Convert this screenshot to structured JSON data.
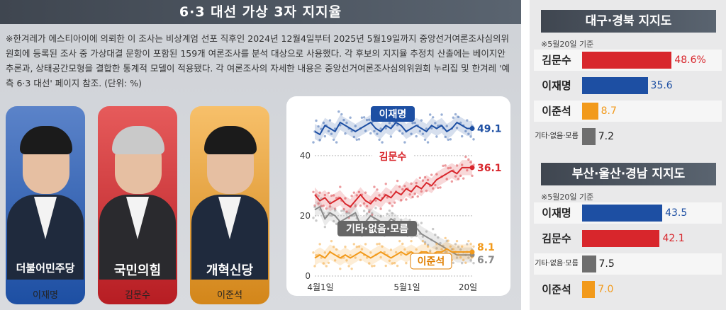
{
  "title": "6·3 대선 가상 3자 지지율",
  "note": "※한겨레가 에스티아이에 의뢰한 이 조사는 비상계엄 선포 직후인 2024년 12월4일부터 2025년 5월19일까지 중앙선거여론조사심의위원회에 등록된 조사 중 가상대결 문항이 포함된 159개 여론조사를 분석 대상으로 사용했다. 각 후보의 지지율 추정치 산출에는 베이지안 추론과, 상태공간모형을 결합한 통계적 모델이 적용됐다. 각 여론조사의 자세한 내용은 중앙선거여론조사심의위원회 누리집 및 한겨레 '예측 6·3 대선' 페이지 참조. (단위: %)",
  "candidates": [
    {
      "name": "이재명",
      "party": "더불어민주당",
      "color": "#1d4fa3"
    },
    {
      "name": "김문수",
      "party": "국민의힘",
      "color": "#d8262c"
    },
    {
      "name": "이준석",
      "party": "개혁신당",
      "color": "#f29a1b"
    }
  ],
  "chart_data": {
    "type": "line",
    "x_ticks": [
      "4월1일",
      "5월1일",
      "20일"
    ],
    "y_ticks": [
      0,
      20,
      40
    ],
    "ylim": [
      0,
      55
    ],
    "series": [
      {
        "name": "이재명",
        "color": "#1d4fa3",
        "end_value": "49.1",
        "values": [
          48,
          47,
          50,
          49,
          48,
          51,
          50,
          49,
          48,
          49,
          50,
          51,
          49,
          48,
          50,
          49,
          51,
          50,
          48,
          49,
          50,
          49,
          48,
          50,
          49,
          50,
          48,
          49,
          51,
          50,
          49,
          49
        ]
      },
      {
        "name": "김문수",
        "color": "#d8262c",
        "end_value": "36.1",
        "values": [
          27,
          25,
          26,
          24,
          25,
          26,
          24,
          23,
          25,
          27,
          25,
          24,
          26,
          25,
          27,
          26,
          28,
          27,
          29,
          28,
          30,
          29,
          31,
          30,
          32,
          33,
          34,
          35,
          34,
          36,
          36,
          36
        ]
      },
      {
        "name": "기타·없음·모름",
        "color": "#8a8a8a",
        "end_value": "6.7",
        "values": [
          22,
          23,
          19,
          21,
          20,
          18,
          19,
          20,
          21,
          17,
          18,
          20,
          19,
          18,
          17,
          19,
          18,
          16,
          17,
          15,
          16,
          14,
          13,
          12,
          11,
          10,
          9,
          8,
          7,
          7,
          7,
          7
        ]
      },
      {
        "name": "이준석",
        "color": "#f29a1b",
        "end_value": "8.1",
        "values": [
          6,
          7,
          6,
          8,
          7,
          6,
          7,
          6,
          7,
          8,
          7,
          6,
          7,
          8,
          7,
          6,
          7,
          8,
          7,
          8,
          7,
          8,
          8,
          7,
          8,
          8,
          9,
          8,
          8,
          8,
          8,
          8
        ]
      }
    ]
  },
  "regions": [
    {
      "title": "대구·경북 지지도",
      "sub": "※5월20일 기준",
      "rows": [
        {
          "label": "김문수",
          "value": "48.6%",
          "num": 48.6,
          "color": "#d8262c",
          "small": false
        },
        {
          "label": "이재명",
          "value": "35.6",
          "num": 35.6,
          "color": "#1d4fa3",
          "small": false
        },
        {
          "label": "이준석",
          "value": "8.7",
          "num": 8.7,
          "color": "#f29a1b",
          "small": false
        },
        {
          "label": "기타·없음·모름",
          "value": "7.2",
          "num": 7.2,
          "color": "#6e6e6e",
          "small": true
        }
      ]
    },
    {
      "title": "부산·울산·경남 지지도",
      "sub": "※5월20일 기준",
      "rows": [
        {
          "label": "이재명",
          "value": "43.5",
          "num": 43.5,
          "color": "#1d4fa3",
          "small": false
        },
        {
          "label": "김문수",
          "value": "42.1",
          "num": 42.1,
          "color": "#d8262c",
          "small": false
        },
        {
          "label": "기타·없음·모름",
          "value": "7.5",
          "num": 7.5,
          "color": "#6e6e6e",
          "small": true
        },
        {
          "label": "이준석",
          "value": "7.0",
          "num": 7.0,
          "color": "#f29a1b",
          "small": false
        }
      ]
    }
  ]
}
